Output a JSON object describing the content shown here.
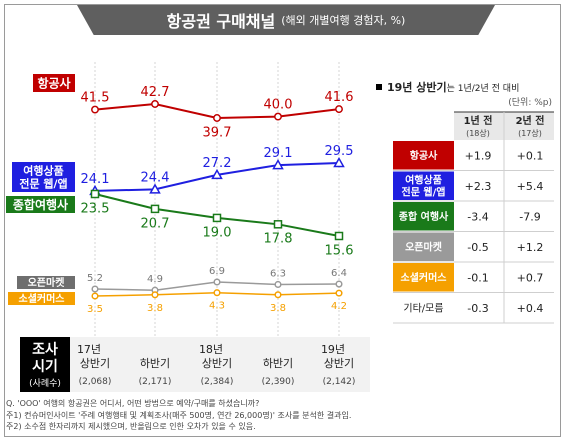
{
  "title": "항공권 구매채널",
  "subtitle": "(해외 개별여행 경험자, %)",
  "chart_data": {
    "type": "line",
    "x": [
      "17년 상반기",
      "하반기",
      "18년 상반기",
      "하반기",
      "19년 상반기"
    ],
    "x_labels": [
      {
        "top": "17년",
        "bottom": "상반기",
        "n": "(2,068)"
      },
      {
        "top": "",
        "bottom": "하반기",
        "n": "(2,171)"
      },
      {
        "top": "18년",
        "bottom": "상반기",
        "n": "(2,384)"
      },
      {
        "top": "",
        "bottom": "하반기",
        "n": "(2,390)"
      },
      {
        "top": "19년",
        "bottom": "상반기",
        "n": "(2,142)"
      }
    ],
    "xaxis_title_1": "조사",
    "xaxis_title_2": "시기",
    "xaxis_title_3": "(사례수)",
    "series": [
      {
        "name": "항공사",
        "values": [
          41.5,
          42.7,
          39.7,
          40.0,
          41.6
        ],
        "color": "#c00000"
      },
      {
        "name": "여행상품 전문 웹/앱",
        "name_lines": [
          "여행상품",
          "전문 웹/앱"
        ],
        "values": [
          24.1,
          24.4,
          27.2,
          29.1,
          29.5
        ],
        "color": "#1f1fe0"
      },
      {
        "name": "종합여행사",
        "values": [
          23.5,
          20.7,
          19.0,
          17.8,
          15.6
        ],
        "color": "#1a7a1a"
      },
      {
        "name": "오픈마켓",
        "values": [
          5.2,
          4.9,
          6.9,
          6.3,
          6.4
        ],
        "color": "#9a9a9a"
      },
      {
        "name": "소셜커머스",
        "values": [
          3.5,
          3.8,
          4.3,
          3.8,
          4.2
        ],
        "color": "#f5a000"
      }
    ],
    "comparison_table": {
      "heading_bold": "19년 상반기",
      "heading_rest": "는 1년/2년 전 대비",
      "unit": "(단위: %p)",
      "col1_header": "1년 전",
      "col1_sub": "(18상)",
      "col2_header": "2년 전",
      "col2_sub": "(17상)",
      "rows": [
        {
          "label": "항공사",
          "label_lines": [
            "항공사"
          ],
          "v1": "+1.9",
          "v2": "+0.1",
          "color": "#c00000"
        },
        {
          "label": "여행상품 전문 웹/앱",
          "label_lines": [
            "여행상품",
            "전문 웹/앱"
          ],
          "v1": "+2.3",
          "v2": "+5.4",
          "color": "#1f1fe0"
        },
        {
          "label": "종합 여행사",
          "label_lines": [
            "종합 여행사"
          ],
          "v1": "-3.4",
          "v2": "-7.9",
          "color": "#1a7a1a"
        },
        {
          "label": "오픈마켓",
          "label_lines": [
            "오픈마켓"
          ],
          "v1": "-0.5",
          "v2": "+1.2",
          "color": "#9a9a9a"
        },
        {
          "label": "소셜커머스",
          "label_lines": [
            "소셜커머스"
          ],
          "v1": "-0.1",
          "v2": "+0.7",
          "color": "#f5a000"
        },
        {
          "label": "기타/모름",
          "label_lines": [
            "기타/모름"
          ],
          "v1": "-0.3",
          "v2": "+0.4",
          "color": ""
        }
      ]
    }
  },
  "notes": [
    "Q. 'OOO' 여행의 항공권은 어디서, 어떤 방법으로 예약/구매를 하셨습니까?",
    "주1) 컨슈머인사이트 '주례 여행행태 및 계획조사(매주 500명, 연간 26,000명)' 조사를 분석한 결과임.",
    "주2) 소수점 한자리까지 제시했으며, 반올림으로 인한 오차가 있을 수 있음."
  ]
}
